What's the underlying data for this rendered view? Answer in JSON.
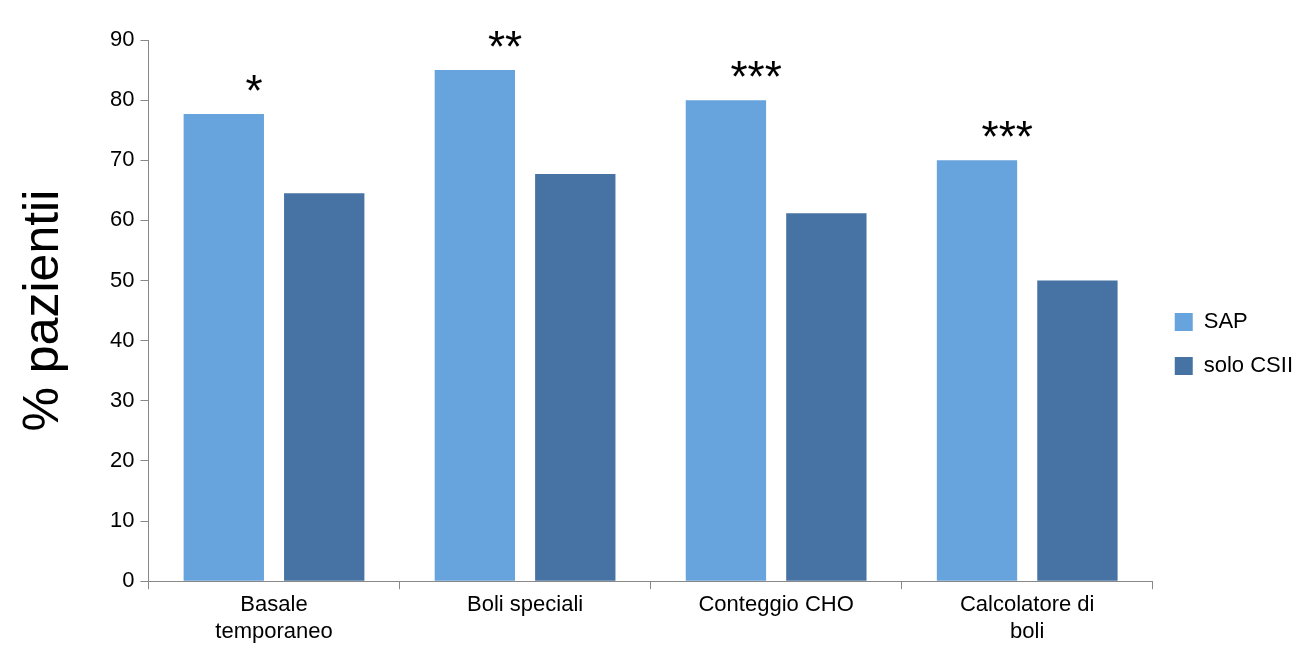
{
  "chart_data": {
    "type": "bar",
    "ylabel": "% pazientii",
    "categories": [
      "Basale temporaneo",
      "Boli speciali",
      "Conteggio CHO",
      "Calcolatore di boli"
    ],
    "series": [
      {
        "name": "SAP",
        "color": "#67a3dd",
        "values": [
          77.7,
          85,
          80,
          70
        ]
      },
      {
        "name": "solo CSII",
        "color": "#4673a3",
        "values": [
          64.5,
          67.7,
          61.2,
          50
        ]
      }
    ],
    "ylim": [
      0,
      90
    ],
    "yticks": [
      0,
      10,
      20,
      30,
      40,
      50,
      60,
      70,
      80,
      90
    ],
    "grid": false,
    "legend": "right",
    "annotations": [
      "*",
      "**",
      "***",
      "***"
    ]
  }
}
